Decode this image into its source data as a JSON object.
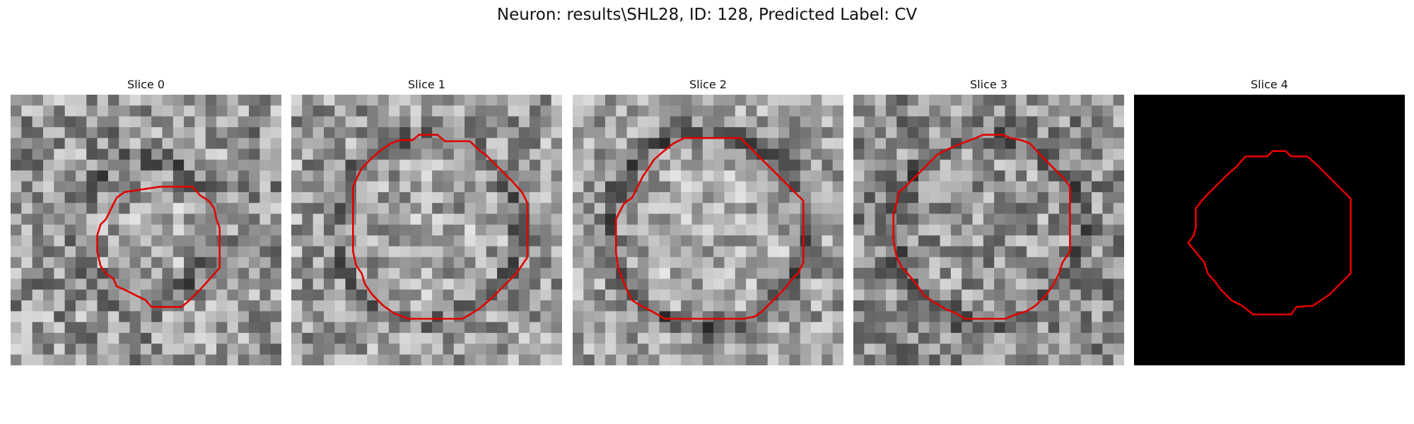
{
  "figure": {
    "title": "Neuron: results\\SHL28, ID: 128, Predicted Label: CV",
    "contour_color": "#e00000",
    "panels": [
      {
        "title": "Slice 0",
        "seed": 11,
        "mean": 150,
        "spread": 70,
        "ring": 0.55,
        "cell_radius": 6.5,
        "blank": false,
        "contour": [
          [
            13.8,
            8.5
          ],
          [
            16.8,
            8.5
          ],
          [
            17.5,
            9.3
          ],
          [
            18.3,
            9.8
          ],
          [
            18.8,
            10.5
          ],
          [
            19.0,
            11.5
          ],
          [
            19.3,
            12.3
          ],
          [
            19.3,
            16.0
          ],
          [
            17.5,
            18.0
          ],
          [
            16.5,
            19.0
          ],
          [
            15.8,
            19.6
          ],
          [
            13.0,
            19.6
          ],
          [
            12.5,
            19.0
          ],
          [
            11.5,
            18.5
          ],
          [
            10.5,
            18.0
          ],
          [
            9.8,
            17.7
          ],
          [
            9.5,
            17.0
          ],
          [
            8.8,
            16.5
          ],
          [
            8.3,
            15.8
          ],
          [
            8.0,
            14.5
          ],
          [
            8.0,
            13.0
          ],
          [
            8.3,
            12.0
          ],
          [
            8.8,
            11.5
          ],
          [
            9.3,
            10.5
          ],
          [
            9.8,
            9.5
          ],
          [
            10.5,
            9.0
          ]
        ]
      },
      {
        "title": "Slice 1",
        "seed": 23,
        "mean": 155,
        "spread": 65,
        "ring": 0.6,
        "cell_radius": 8.5,
        "blank": false,
        "contour": [
          [
            9.2,
            4.5
          ],
          [
            10.0,
            4.2
          ],
          [
            11.2,
            4.2
          ],
          [
            11.8,
            3.7
          ],
          [
            13.5,
            3.7
          ],
          [
            14.2,
            4.3
          ],
          [
            16.5,
            4.3
          ],
          [
            17.3,
            5.1
          ],
          [
            18.0,
            5.6
          ],
          [
            19.3,
            6.9
          ],
          [
            20.5,
            8.1
          ],
          [
            21.3,
            9.0
          ],
          [
            21.8,
            10.0
          ],
          [
            21.8,
            15.0
          ],
          [
            20.8,
            16.5
          ],
          [
            19.8,
            17.5
          ],
          [
            18.5,
            18.8
          ],
          [
            17.3,
            19.8
          ],
          [
            16.5,
            20.3
          ],
          [
            15.8,
            20.7
          ],
          [
            10.8,
            20.7
          ],
          [
            9.5,
            20.2
          ],
          [
            8.5,
            19.5
          ],
          [
            7.5,
            18.5
          ],
          [
            6.8,
            17.5
          ],
          [
            6.5,
            16.5
          ],
          [
            6.0,
            15.8
          ],
          [
            5.7,
            14.5
          ],
          [
            5.7,
            8.5
          ],
          [
            6.0,
            7.8
          ],
          [
            6.5,
            6.8
          ],
          [
            7.5,
            5.8
          ],
          [
            8.3,
            5.1
          ]
        ]
      },
      {
        "title": "Slice 2",
        "seed": 37,
        "mean": 160,
        "spread": 60,
        "ring": 0.95,
        "cell_radius": 9.2,
        "blank": false,
        "contour": [
          [
            10.3,
            4.0
          ],
          [
            15.5,
            4.0
          ],
          [
            16.5,
            5.0
          ],
          [
            17.5,
            6.0
          ],
          [
            18.8,
            7.3
          ],
          [
            20.0,
            8.5
          ],
          [
            21.3,
            9.8
          ],
          [
            21.3,
            15.5
          ],
          [
            20.8,
            16.5
          ],
          [
            20.3,
            17.0
          ],
          [
            19.5,
            18.0
          ],
          [
            18.5,
            19.0
          ],
          [
            17.5,
            20.0
          ],
          [
            16.8,
            20.5
          ],
          [
            15.8,
            20.7
          ],
          [
            8.5,
            20.7
          ],
          [
            7.3,
            20.0
          ],
          [
            6.3,
            19.5
          ],
          [
            5.5,
            19.0
          ],
          [
            5.0,
            18.0
          ],
          [
            4.5,
            16.8
          ],
          [
            4.2,
            16.0
          ],
          [
            4.0,
            14.5
          ],
          [
            4.0,
            11.5
          ],
          [
            4.5,
            10.5
          ],
          [
            4.8,
            10.0
          ],
          [
            5.5,
            9.5
          ],
          [
            6.0,
            8.5
          ],
          [
            6.5,
            7.5
          ],
          [
            7.0,
            6.8
          ],
          [
            7.5,
            6.0
          ],
          [
            8.3,
            5.3
          ],
          [
            9.3,
            4.5
          ]
        ]
      },
      {
        "title": "Slice 3",
        "seed": 53,
        "mean": 140,
        "spread": 65,
        "ring": 0.5,
        "cell_radius": 8.6,
        "blank": false,
        "contour": [
          [
            11.3,
            4.0
          ],
          [
            12.0,
            3.7
          ],
          [
            13.8,
            3.7
          ],
          [
            14.5,
            4.0
          ],
          [
            15.5,
            4.2
          ],
          [
            16.3,
            4.5
          ],
          [
            17.5,
            5.8
          ],
          [
            18.5,
            6.8
          ],
          [
            19.5,
            7.8
          ],
          [
            20.0,
            8.5
          ],
          [
            20.0,
            14.5
          ],
          [
            19.3,
            15.5
          ],
          [
            19.0,
            16.5
          ],
          [
            18.5,
            17.5
          ],
          [
            17.8,
            18.5
          ],
          [
            16.8,
            19.5
          ],
          [
            16.0,
            20.0
          ],
          [
            15.0,
            20.3
          ],
          [
            14.0,
            20.7
          ],
          [
            10.3,
            20.7
          ],
          [
            9.5,
            20.2
          ],
          [
            8.5,
            19.8
          ],
          [
            7.5,
            19.2
          ],
          [
            6.5,
            18.5
          ],
          [
            5.8,
            17.5
          ],
          [
            5.0,
            16.5
          ],
          [
            4.5,
            16.0
          ],
          [
            4.0,
            15.0
          ],
          [
            3.7,
            13.5
          ],
          [
            3.7,
            11.0
          ],
          [
            4.0,
            10.0
          ],
          [
            4.2,
            9.0
          ],
          [
            4.8,
            8.5
          ],
          [
            5.8,
            7.5
          ],
          [
            6.8,
            6.5
          ],
          [
            7.8,
            5.5
          ],
          [
            8.8,
            5.0
          ],
          [
            10.0,
            4.5
          ]
        ]
      },
      {
        "title": "Slice 4",
        "seed": 0,
        "mean": 0,
        "spread": 0,
        "ring": 0,
        "cell_radius": 0,
        "blank": true,
        "contour": [
          [
            12.3,
            5.7
          ],
          [
            12.8,
            5.2
          ],
          [
            14.0,
            5.2
          ],
          [
            14.5,
            5.7
          ],
          [
            16.0,
            5.7
          ],
          [
            17.0,
            6.6
          ],
          [
            18.0,
            7.6
          ],
          [
            19.0,
            8.6
          ],
          [
            20.0,
            9.6
          ],
          [
            20.0,
            16.5
          ],
          [
            19.0,
            17.5
          ],
          [
            18.0,
            18.5
          ],
          [
            16.5,
            19.5
          ],
          [
            15.0,
            19.6
          ],
          [
            14.5,
            20.3
          ],
          [
            11.0,
            20.3
          ],
          [
            10.0,
            19.5
          ],
          [
            9.0,
            19.0
          ],
          [
            8.0,
            18.0
          ],
          [
            7.5,
            17.3
          ],
          [
            6.8,
            16.5
          ],
          [
            6.5,
            15.5
          ],
          [
            5.5,
            14.3
          ],
          [
            5.0,
            13.7
          ],
          [
            5.5,
            13.0
          ],
          [
            5.7,
            12.3
          ],
          [
            5.7,
            10.5
          ],
          [
            6.5,
            9.5
          ],
          [
            7.5,
            8.5
          ],
          [
            8.5,
            7.5
          ],
          [
            9.5,
            6.6
          ],
          [
            10.3,
            5.7
          ],
          [
            12.0,
            5.7
          ]
        ]
      }
    ]
  }
}
